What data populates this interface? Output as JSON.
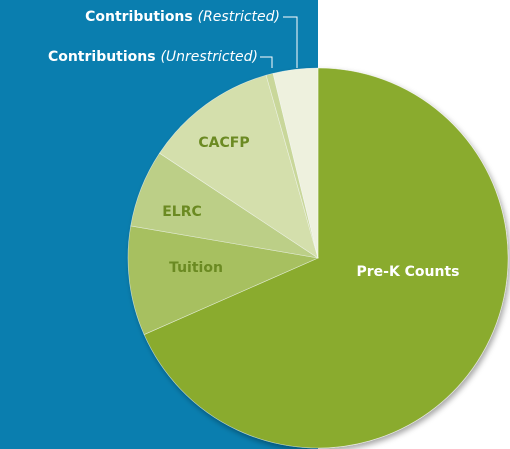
{
  "chart_data": {
    "type": "pie",
    "categories": [
      "Pre-K Counts",
      "Tuition",
      "ELRC",
      "CACFP",
      "Contributions (Unrestricted)",
      "Contributions (Restricted)"
    ],
    "values": [
      68.4,
      9.3,
      6.6,
      11.3,
      0.6,
      3.8
    ],
    "colors": [
      "#8aab2f",
      "#a7c061",
      "#bccf87",
      "#d4dfac",
      "#c9d79a",
      "#eef1de"
    ]
  }
}
